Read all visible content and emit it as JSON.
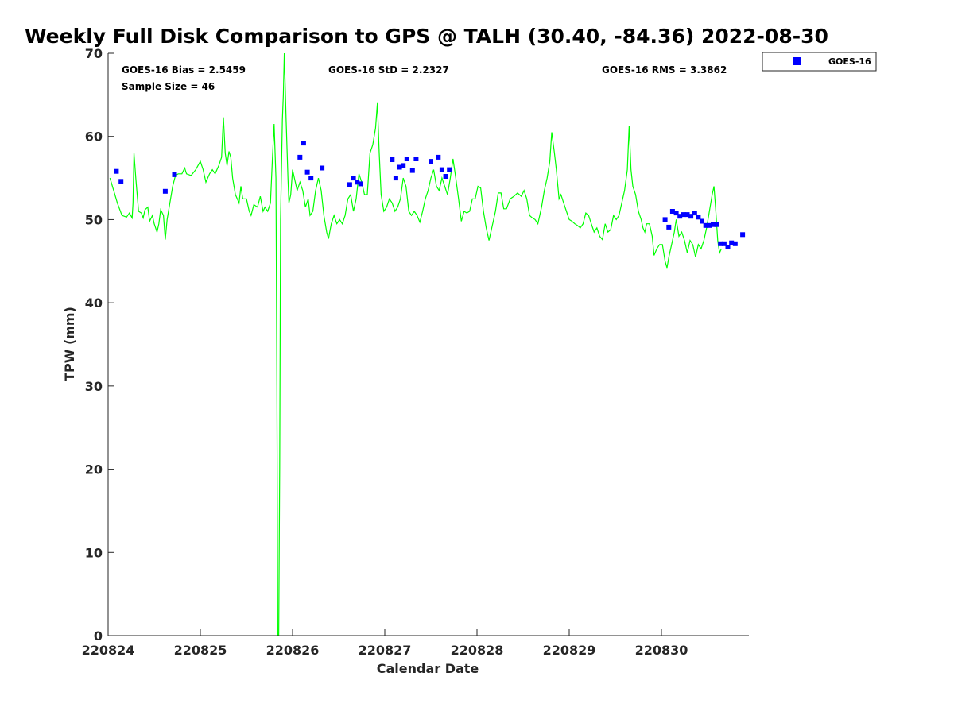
{
  "chart_data": {
    "type": "scatter",
    "title": "Weekly Full Disk Comparison to GPS @ TALH (30.40, -84.36) 2022-08-30",
    "xlabel": "Calendar Date",
    "ylabel": "TPW (mm)",
    "xlim": [
      0,
      6.95
    ],
    "ylim": [
      0,
      70
    ],
    "x_ticks": [
      0,
      1,
      2,
      3,
      4,
      5,
      6
    ],
    "x_tick_labels": [
      "220824",
      "220825",
      "220826",
      "220827",
      "220828",
      "220829",
      "220830"
    ],
    "y_ticks": [
      0,
      10,
      20,
      30,
      40,
      50,
      60,
      70
    ],
    "y_tick_labels": [
      "0",
      "10",
      "20",
      "30",
      "40",
      "50",
      "60",
      "70"
    ],
    "x_unit": "days since 220824",
    "grid": false,
    "legend": {
      "position": "outside-top-right",
      "entries": [
        "GOES-16"
      ]
    },
    "stats": {
      "bias": "GOES-16 Bias = 2.5459",
      "std": "GOES-16 StD = 2.2327",
      "rms": "GOES-16 RMS = 3.3862",
      "sample": "Sample Size = 46"
    },
    "series": [
      {
        "name": "GPS",
        "kind": "line",
        "color": "#00ff00",
        "points": [
          [
            0.02,
            55.0
          ],
          [
            0.06,
            53.5
          ],
          [
            0.1,
            52.0
          ],
          [
            0.15,
            50.5
          ],
          [
            0.2,
            50.3
          ],
          [
            0.23,
            50.8
          ],
          [
            0.26,
            50.2
          ],
          [
            0.27,
            52.0
          ],
          [
            0.28,
            58.0
          ],
          [
            0.3,
            55.0
          ],
          [
            0.33,
            51.0
          ],
          [
            0.36,
            50.8
          ],
          [
            0.38,
            50.2
          ],
          [
            0.4,
            51.2
          ],
          [
            0.43,
            51.5
          ],
          [
            0.45,
            49.8
          ],
          [
            0.48,
            50.5
          ],
          [
            0.5,
            49.5
          ],
          [
            0.53,
            48.5
          ],
          [
            0.55,
            49.5
          ],
          [
            0.57,
            51.2
          ],
          [
            0.6,
            50.5
          ],
          [
            0.62,
            47.6
          ],
          [
            0.64,
            50.0
          ],
          [
            0.67,
            52.0
          ],
          [
            0.7,
            54.0
          ],
          [
            0.73,
            55.3
          ],
          [
            0.76,
            55.5
          ],
          [
            0.8,
            55.5
          ],
          [
            0.83,
            56.2
          ],
          [
            0.85,
            55.5
          ],
          [
            0.9,
            55.3
          ],
          [
            0.95,
            56.0
          ],
          [
            1.0,
            57.0
          ],
          [
            1.03,
            56.0
          ],
          [
            1.06,
            54.5
          ],
          [
            1.1,
            55.5
          ],
          [
            1.13,
            56.0
          ],
          [
            1.16,
            55.5
          ],
          [
            1.2,
            56.5
          ],
          [
            1.23,
            57.5
          ],
          [
            1.25,
            62.3
          ],
          [
            1.27,
            58.0
          ],
          [
            1.29,
            56.5
          ],
          [
            1.31,
            58.2
          ],
          [
            1.33,
            57.5
          ],
          [
            1.35,
            55.0
          ],
          [
            1.38,
            53.0
          ],
          [
            1.42,
            52.0
          ],
          [
            1.44,
            54.0
          ],
          [
            1.46,
            52.5
          ],
          [
            1.5,
            52.5
          ],
          [
            1.53,
            51.0
          ],
          [
            1.55,
            50.5
          ],
          [
            1.58,
            51.8
          ],
          [
            1.62,
            51.5
          ],
          [
            1.65,
            52.8
          ],
          [
            1.68,
            51.0
          ],
          [
            1.7,
            51.5
          ],
          [
            1.73,
            51.0
          ],
          [
            1.76,
            52.0
          ],
          [
            1.78,
            57.0
          ],
          [
            1.8,
            61.5
          ],
          [
            1.82,
            55.0
          ],
          [
            1.83,
            30.0
          ],
          [
            1.84,
            0.0
          ],
          [
            1.85,
            0.0
          ],
          [
            1.86,
            20.0
          ],
          [
            1.87,
            50.0
          ],
          [
            1.89,
            62.0
          ],
          [
            1.9,
            65.0
          ],
          [
            1.91,
            70.0
          ],
          [
            1.93,
            62.0
          ],
          [
            1.95,
            55.0
          ],
          [
            1.96,
            52.0
          ],
          [
            1.98,
            53.0
          ],
          [
            2.0,
            56.0
          ],
          [
            2.02,
            55.0
          ],
          [
            2.05,
            53.5
          ],
          [
            2.08,
            54.5
          ],
          [
            2.11,
            53.5
          ],
          [
            2.14,
            51.5
          ],
          [
            2.17,
            52.5
          ],
          [
            2.19,
            50.5
          ],
          [
            2.22,
            51.0
          ],
          [
            2.25,
            53.5
          ],
          [
            2.28,
            55.0
          ],
          [
            2.31,
            53.5
          ],
          [
            2.34,
            50.5
          ],
          [
            2.37,
            48.5
          ],
          [
            2.39,
            47.7
          ],
          [
            2.42,
            49.5
          ],
          [
            2.45,
            50.5
          ],
          [
            2.48,
            49.5
          ],
          [
            2.51,
            50.0
          ],
          [
            2.54,
            49.5
          ],
          [
            2.57,
            50.5
          ],
          [
            2.6,
            52.5
          ],
          [
            2.63,
            53.0
          ],
          [
            2.66,
            51.0
          ],
          [
            2.69,
            52.5
          ],
          [
            2.72,
            55.5
          ],
          [
            2.75,
            54.5
          ],
          [
            2.78,
            53.0
          ],
          [
            2.81,
            53.0
          ],
          [
            2.84,
            58.0
          ],
          [
            2.87,
            59.0
          ],
          [
            2.9,
            61.0
          ],
          [
            2.92,
            64.0
          ],
          [
            2.94,
            58.0
          ],
          [
            2.96,
            53.0
          ],
          [
            2.99,
            51.0
          ],
          [
            3.02,
            51.5
          ],
          [
            3.05,
            52.5
          ],
          [
            3.08,
            52.0
          ],
          [
            3.11,
            51.0
          ],
          [
            3.14,
            51.5
          ],
          [
            3.17,
            52.5
          ],
          [
            3.2,
            55.0
          ],
          [
            3.23,
            54.0
          ],
          [
            3.26,
            51.0
          ],
          [
            3.29,
            50.5
          ],
          [
            3.32,
            51.0
          ],
          [
            3.35,
            50.5
          ],
          [
            3.38,
            49.7
          ],
          [
            3.41,
            51.0
          ],
          [
            3.44,
            52.5
          ],
          [
            3.47,
            53.5
          ],
          [
            3.5,
            55.0
          ],
          [
            3.53,
            56.0
          ],
          [
            3.56,
            54.0
          ],
          [
            3.59,
            53.5
          ],
          [
            3.62,
            55.0
          ],
          [
            3.65,
            54.0
          ],
          [
            3.68,
            53.0
          ],
          [
            3.71,
            55.0
          ],
          [
            3.74,
            57.3
          ],
          [
            3.77,
            55.0
          ],
          [
            3.8,
            52.5
          ],
          [
            3.83,
            49.8
          ],
          [
            3.86,
            51.0
          ],
          [
            3.89,
            50.8
          ],
          [
            3.92,
            51.0
          ],
          [
            3.95,
            52.5
          ],
          [
            3.98,
            52.5
          ],
          [
            4.01,
            54.0
          ],
          [
            4.04,
            53.8
          ],
          [
            4.07,
            51.0
          ],
          [
            4.1,
            49.0
          ],
          [
            4.13,
            47.5
          ],
          [
            4.16,
            49.0
          ],
          [
            4.2,
            51.0
          ],
          [
            4.23,
            53.2
          ],
          [
            4.26,
            53.2
          ],
          [
            4.29,
            51.3
          ],
          [
            4.32,
            51.3
          ],
          [
            4.36,
            52.5
          ],
          [
            4.4,
            52.8
          ],
          [
            4.44,
            53.2
          ],
          [
            4.48,
            52.8
          ],
          [
            4.51,
            53.5
          ],
          [
            4.54,
            52.5
          ],
          [
            4.57,
            50.5
          ],
          [
            4.6,
            50.2
          ],
          [
            4.63,
            50.0
          ],
          [
            4.66,
            49.5
          ],
          [
            4.7,
            51.5
          ],
          [
            4.73,
            53.5
          ],
          [
            4.76,
            55.0
          ],
          [
            4.79,
            57.0
          ],
          [
            4.81,
            60.5
          ],
          [
            4.84,
            58.0
          ],
          [
            4.86,
            56.0
          ],
          [
            4.89,
            52.5
          ],
          [
            4.91,
            53.0
          ],
          [
            4.94,
            52.0
          ],
          [
            4.97,
            51.0
          ],
          [
            5.0,
            50.0
          ],
          [
            5.03,
            49.8
          ],
          [
            5.06,
            49.5
          ],
          [
            5.09,
            49.3
          ],
          [
            5.12,
            49.0
          ],
          [
            5.15,
            49.5
          ],
          [
            5.18,
            50.8
          ],
          [
            5.21,
            50.5
          ],
          [
            5.24,
            49.5
          ],
          [
            5.27,
            48.5
          ],
          [
            5.3,
            49.0
          ],
          [
            5.33,
            48.0
          ],
          [
            5.36,
            47.6
          ],
          [
            5.39,
            49.5
          ],
          [
            5.42,
            48.5
          ],
          [
            5.45,
            48.8
          ],
          [
            5.48,
            50.5
          ],
          [
            5.51,
            50.0
          ],
          [
            5.54,
            50.5
          ],
          [
            5.57,
            52.0
          ],
          [
            5.6,
            53.5
          ],
          [
            5.63,
            56.0
          ],
          [
            5.65,
            61.3
          ],
          [
            5.67,
            56.0
          ],
          [
            5.69,
            54.0
          ],
          [
            5.72,
            53.0
          ],
          [
            5.75,
            51.0
          ],
          [
            5.78,
            50.0
          ],
          [
            5.8,
            49.0
          ],
          [
            5.82,
            48.5
          ],
          [
            5.84,
            49.5
          ],
          [
            5.87,
            49.5
          ],
          [
            5.9,
            48.0
          ],
          [
            5.92,
            45.7
          ],
          [
            5.95,
            46.5
          ],
          [
            5.98,
            47.0
          ],
          [
            6.01,
            47.0
          ],
          [
            6.04,
            45.0
          ],
          [
            6.06,
            44.2
          ],
          [
            6.08,
            45.5
          ],
          [
            6.11,
            47.0
          ],
          [
            6.14,
            48.5
          ],
          [
            6.16,
            50.0
          ],
          [
            6.19,
            48.0
          ],
          [
            6.22,
            48.5
          ],
          [
            6.25,
            47.5
          ],
          [
            6.28,
            46.0
          ],
          [
            6.31,
            47.5
          ],
          [
            6.34,
            47.0
          ],
          [
            6.37,
            45.5
          ],
          [
            6.4,
            47.0
          ],
          [
            6.43,
            46.5
          ],
          [
            6.46,
            47.5
          ],
          [
            6.49,
            49.0
          ],
          [
            6.52,
            51.0
          ],
          [
            6.55,
            53.0
          ],
          [
            6.57,
            54.0
          ],
          [
            6.59,
            51.0
          ],
          [
            6.61,
            47.5
          ],
          [
            6.63,
            46.0
          ],
          [
            6.65,
            46.5
          ]
        ]
      },
      {
        "name": "GOES-16",
        "kind": "scatter",
        "marker": "square",
        "color": "#0000ff",
        "points": [
          [
            0.09,
            55.8
          ],
          [
            0.14,
            54.6
          ],
          [
            0.62,
            53.4
          ],
          [
            0.72,
            55.4
          ],
          [
            2.08,
            57.5
          ],
          [
            2.12,
            59.2
          ],
          [
            2.16,
            55.7
          ],
          [
            2.2,
            55.0
          ],
          [
            2.32,
            56.2
          ],
          [
            2.62,
            54.2
          ],
          [
            2.66,
            55.0
          ],
          [
            2.7,
            54.5
          ],
          [
            2.74,
            54.3
          ],
          [
            3.08,
            57.2
          ],
          [
            3.12,
            55.0
          ],
          [
            3.16,
            56.3
          ],
          [
            3.2,
            56.5
          ],
          [
            3.24,
            57.3
          ],
          [
            3.3,
            55.9
          ],
          [
            3.34,
            57.3
          ],
          [
            3.5,
            57.0
          ],
          [
            3.58,
            57.5
          ],
          [
            3.62,
            56.0
          ],
          [
            3.66,
            55.2
          ],
          [
            3.7,
            56.0
          ],
          [
            6.04,
            50.0
          ],
          [
            6.08,
            49.1
          ],
          [
            6.12,
            51.0
          ],
          [
            6.16,
            50.8
          ],
          [
            6.2,
            50.4
          ],
          [
            6.24,
            50.6
          ],
          [
            6.28,
            50.6
          ],
          [
            6.32,
            50.4
          ],
          [
            6.36,
            50.8
          ],
          [
            6.4,
            50.3
          ],
          [
            6.44,
            49.8
          ],
          [
            6.48,
            49.3
          ],
          [
            6.52,
            49.3
          ],
          [
            6.56,
            49.4
          ],
          [
            6.6,
            49.4
          ],
          [
            6.64,
            47.1
          ],
          [
            6.68,
            47.1
          ],
          [
            6.72,
            46.7
          ],
          [
            6.76,
            47.2
          ],
          [
            6.8,
            47.1
          ],
          [
            6.88,
            48.2
          ]
        ]
      }
    ]
  }
}
